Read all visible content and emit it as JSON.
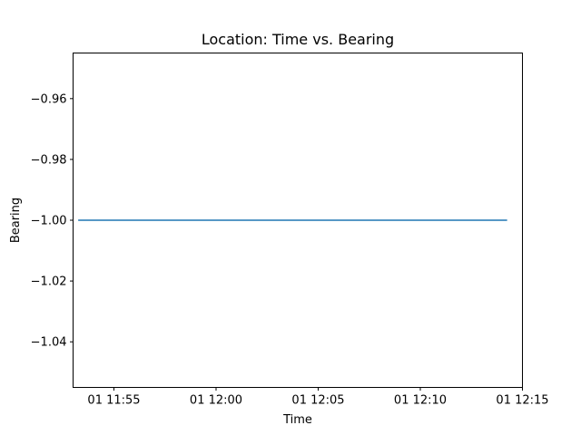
{
  "chart_data": {
    "type": "line",
    "title": "Location: Time vs. Bearing",
    "xlabel": "Time",
    "ylabel": "Bearing",
    "xlim": [
      "01 11:53:00",
      "01 12:15:00"
    ],
    "ylim": [
      -1.055,
      -0.945
    ],
    "grid": false,
    "x_ticks": [
      {
        "value": "01 11:55:00",
        "label": "01 11:55"
      },
      {
        "value": "01 12:00:00",
        "label": "01 12:00"
      },
      {
        "value": "01 12:05:00",
        "label": "01 12:05"
      },
      {
        "value": "01 12:10:00",
        "label": "01 12:10"
      },
      {
        "value": "01 12:15:00",
        "label": "01 12:15"
      }
    ],
    "y_ticks": [
      {
        "value": -0.96,
        "label": "−0.96"
      },
      {
        "value": -0.98,
        "label": "−0.98"
      },
      {
        "value": -1.0,
        "label": "−1.00"
      },
      {
        "value": -1.02,
        "label": "−1.02"
      },
      {
        "value": -1.04,
        "label": "−1.04"
      }
    ],
    "series": [
      {
        "color": "#1f77b4",
        "x": [
          "01 11:53:15",
          "01 12:14:15"
        ],
        "y": [
          -1.0,
          -1.0
        ]
      }
    ]
  }
}
